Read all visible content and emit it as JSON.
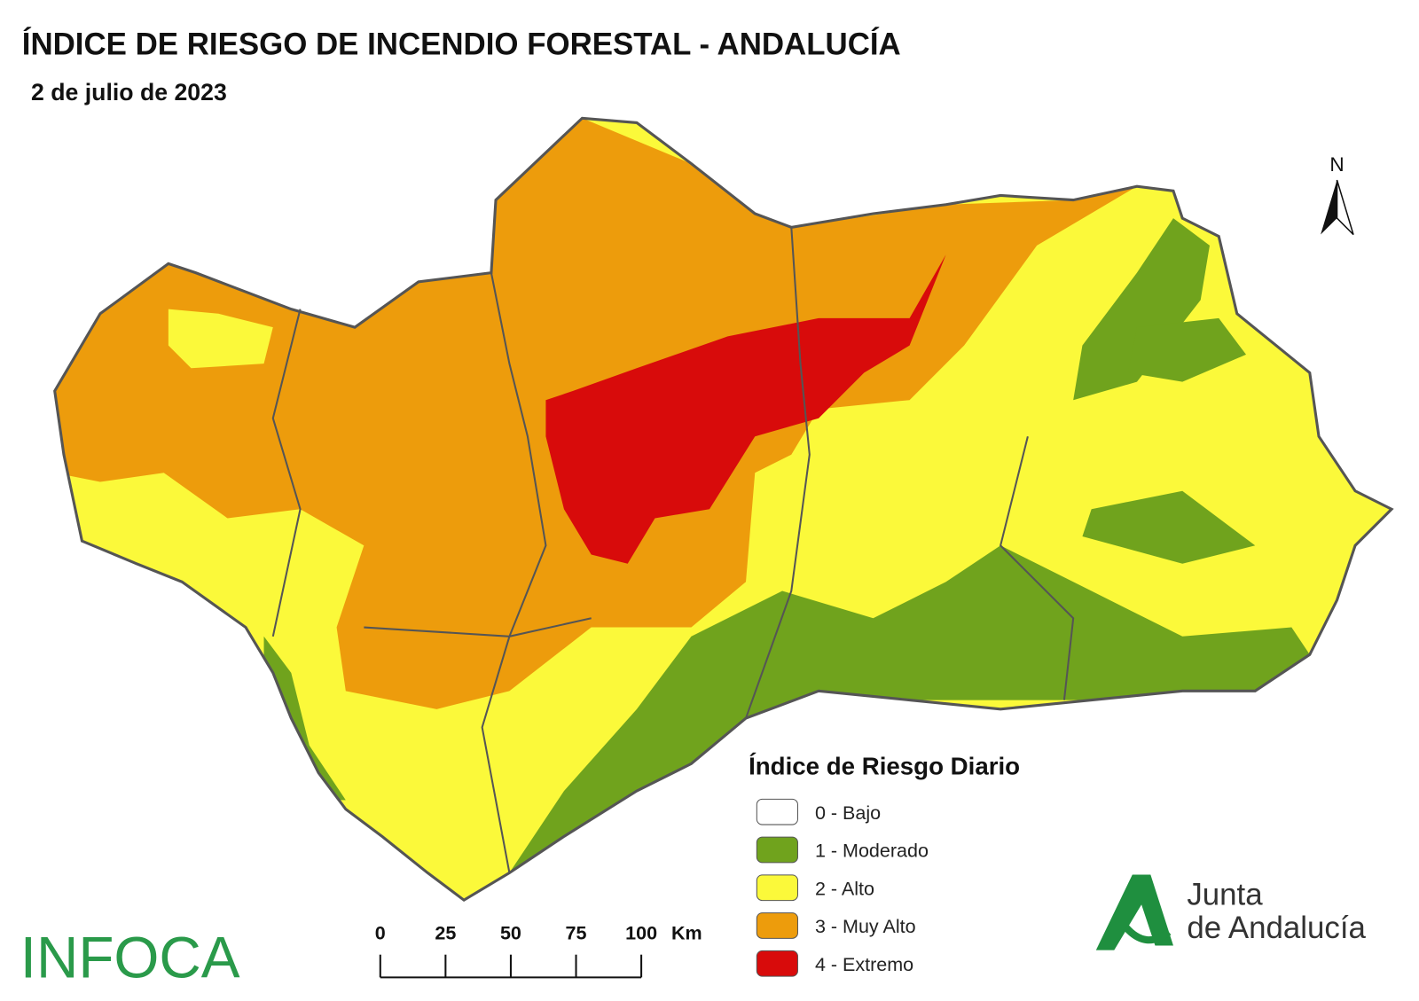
{
  "header": {
    "title": "ÍNDICE DE RIESGO DE INCENDIO FORESTAL - ANDALUCÍA",
    "subtitle": "2 de julio de 2023"
  },
  "north": "N",
  "legend": {
    "title": "Índice de Riesgo Diario",
    "items": [
      {
        "label": "0 - Bajo",
        "color": "#ffffff"
      },
      {
        "label": "1 - Moderado",
        "color": "#70a31d"
      },
      {
        "label": "2 - Alto",
        "color": "#fbf93a"
      },
      {
        "label": "3 - Muy Alto",
        "color": "#ed9c0c"
      },
      {
        "label": "4 - Extremo",
        "color": "#d80b0b"
      }
    ]
  },
  "scale_bar": {
    "ticks": [
      0,
      25,
      50,
      75,
      100
    ],
    "unit": "Km"
  },
  "logos": {
    "infoca": "INFOCA",
    "junta_line1": "Junta",
    "junta_line2": "de Andalucía"
  }
}
